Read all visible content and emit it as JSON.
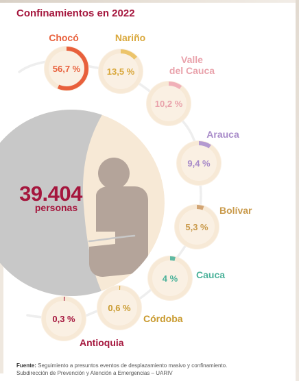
{
  "title": "Confinamientos en 2022",
  "total": {
    "value": "39.404",
    "unit": "personas"
  },
  "colors": {
    "title": "#a5163d",
    "ring_bg": "#f7e9d6",
    "ring_inner": "#faf0e3",
    "big_circle_gray": "#c8c8c8",
    "big_circle_cream": "#f7e9d6",
    "person": "#b4a49a",
    "connector": "#eeeeee"
  },
  "chart_data": {
    "type": "pie",
    "title": "Confinamientos en 2022",
    "unit": "%",
    "total_label": "39.404 personas",
    "categories": [
      "Chocó",
      "Nariño",
      "Valle del Cauca",
      "Arauca",
      "Bolívar",
      "Cauca",
      "Córdoba",
      "Antioquia"
    ],
    "values": [
      56.7,
      13.5,
      10.2,
      9.4,
      5.3,
      4,
      0.6,
      0.3
    ],
    "series": [
      {
        "name": "Chocó",
        "value": 56.7,
        "label": "56,7 %",
        "color": "#e8603c",
        "label_color": "#e8603c"
      },
      {
        "name": "Nariño",
        "value": 13.5,
        "label": "13,5 %",
        "color": "#ecc46a",
        "label_color": "#d9a73a"
      },
      {
        "name": "Valle del Cauca",
        "value": 10.2,
        "label": "10,2 %",
        "color": "#f0b0b8",
        "label_color": "#e9a2ab"
      },
      {
        "name": "Arauca",
        "value": 9.4,
        "label": "9,4 %",
        "color": "#b49ad0",
        "label_color": "#a88bc9"
      },
      {
        "name": "Bolívar",
        "value": 5.3,
        "label": "5,3 %",
        "color": "#d2a574",
        "label_color": "#c99a4b"
      },
      {
        "name": "Cauca",
        "value": 4,
        "label": "4 %",
        "color": "#5fb9a3",
        "label_color": "#4bb29a"
      },
      {
        "name": "Córdoba",
        "value": 0.6,
        "label": "0,6 %",
        "color": "#d8ab4a",
        "label_color": "#c99a2e"
      },
      {
        "name": "Antioquia",
        "value": 0.3,
        "label": "0,3 %",
        "color": "#a5163d",
        "label_color": "#a5163d"
      }
    ]
  },
  "footer": {
    "source_label": "Fuente:",
    "source_text": "Seguimiento a presuntos eventos de desplazamiento masivo y confinamiento.",
    "line2": "Subdirección de Prevención y Atención a Emergencias – UARIV"
  }
}
